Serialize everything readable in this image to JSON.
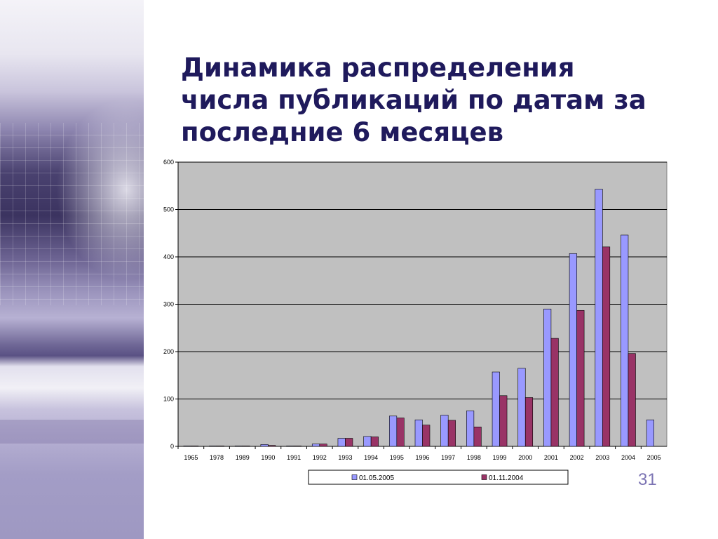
{
  "slide": {
    "title_lines": [
      "Динамика распределения",
      "числа публикаций по датам за",
      "последние 6 месяцев"
    ],
    "page_number": "31"
  },
  "colors": {
    "series_1": "#9999ff",
    "series_2": "#993366",
    "plot_background": "#c0c0c0",
    "title": "#1f1a5c",
    "page_number": "#7b73b3"
  },
  "chart_data": {
    "type": "bar",
    "categories": [
      "1965",
      "1978",
      "1989",
      "1990",
      "1991",
      "1992",
      "1993",
      "1994",
      "1995",
      "1996",
      "1997",
      "1998",
      "1999",
      "2000",
      "2001",
      "2002",
      "2003",
      "2004",
      "2005"
    ],
    "series": [
      {
        "name": "01.05.2005",
        "values": [
          1,
          1,
          1,
          4,
          1,
          5,
          17,
          21,
          64,
          56,
          66,
          75,
          157,
          165,
          290,
          407,
          543,
          446,
          56
        ]
      },
      {
        "name": "01.11.2004",
        "values": [
          1,
          1,
          1,
          2,
          1,
          5,
          17,
          20,
          60,
          45,
          55,
          41,
          107,
          103,
          228,
          287,
          421,
          196,
          0
        ]
      }
    ],
    "ylim": [
      0,
      600
    ],
    "yticks": [
      "0",
      "100",
      "200",
      "300",
      "400",
      "500",
      "600"
    ],
    "grid": true,
    "legend_position": "bottom"
  }
}
